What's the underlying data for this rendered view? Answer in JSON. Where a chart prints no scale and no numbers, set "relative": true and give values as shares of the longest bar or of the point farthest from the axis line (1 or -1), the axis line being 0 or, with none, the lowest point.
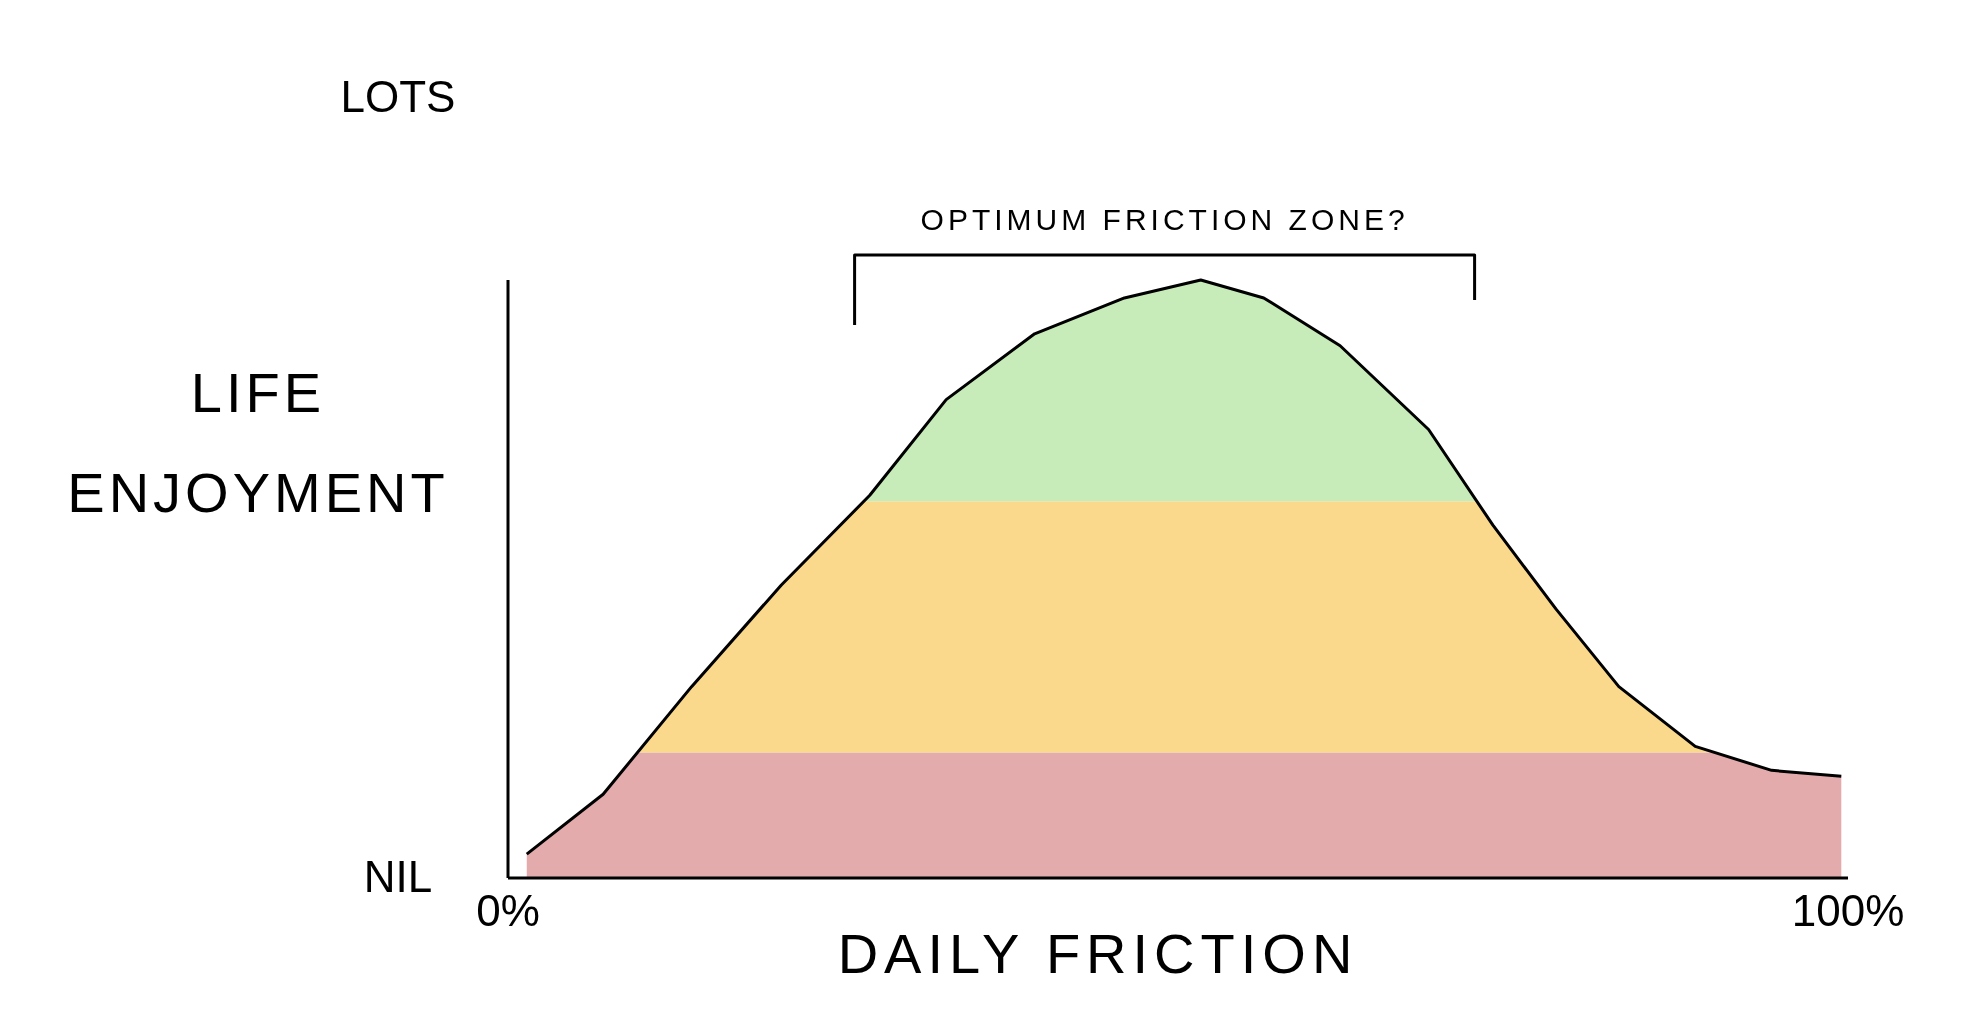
{
  "chart_data": {
    "type": "line",
    "xlabel": "DAILY FRICTION",
    "ylabel": "LIFE ENJOYMENT",
    "relative": true,
    "x": [
      1.4,
      7.1,
      13.7,
      20.4,
      27,
      32.7,
      39.3,
      46,
      51.7,
      56.4,
      62.1,
      68.7,
      73.5,
      78.2,
      82.9,
      88.6,
      94.3,
      99.5
    ],
    "series": [
      {
        "color": "#000000",
        "values": [
          0.04,
          0.14,
          0.32,
          0.49,
          0.64,
          0.8,
          0.91,
          0.97,
          1,
          0.97,
          0.89,
          0.75,
          0.59,
          0.45,
          0.32,
          0.22,
          0.18,
          0.17
        ]
      }
    ],
    "bands": [
      {
        "axis": "y",
        "from": 0,
        "to": 0.21,
        "color": "#e4abad"
      },
      {
        "axis": "y",
        "from": 0.21,
        "to": 0.63,
        "color": "#fbd98c"
      },
      {
        "axis": "y",
        "from": 0.63,
        "to": 1,
        "color": "#c8ecb9"
      }
    ],
    "xlim": [
      0,
      100
    ],
    "xticks": [
      {
        "value": 0,
        "label": "0%"
      },
      {
        "value": 100,
        "label": "100%"
      }
    ],
    "annotations": [
      {
        "text": "OPTIMUM FRICTION ZONE?",
        "x": 49,
        "y": 1
      },
      "LOTS",
      "NIL"
    ]
  }
}
